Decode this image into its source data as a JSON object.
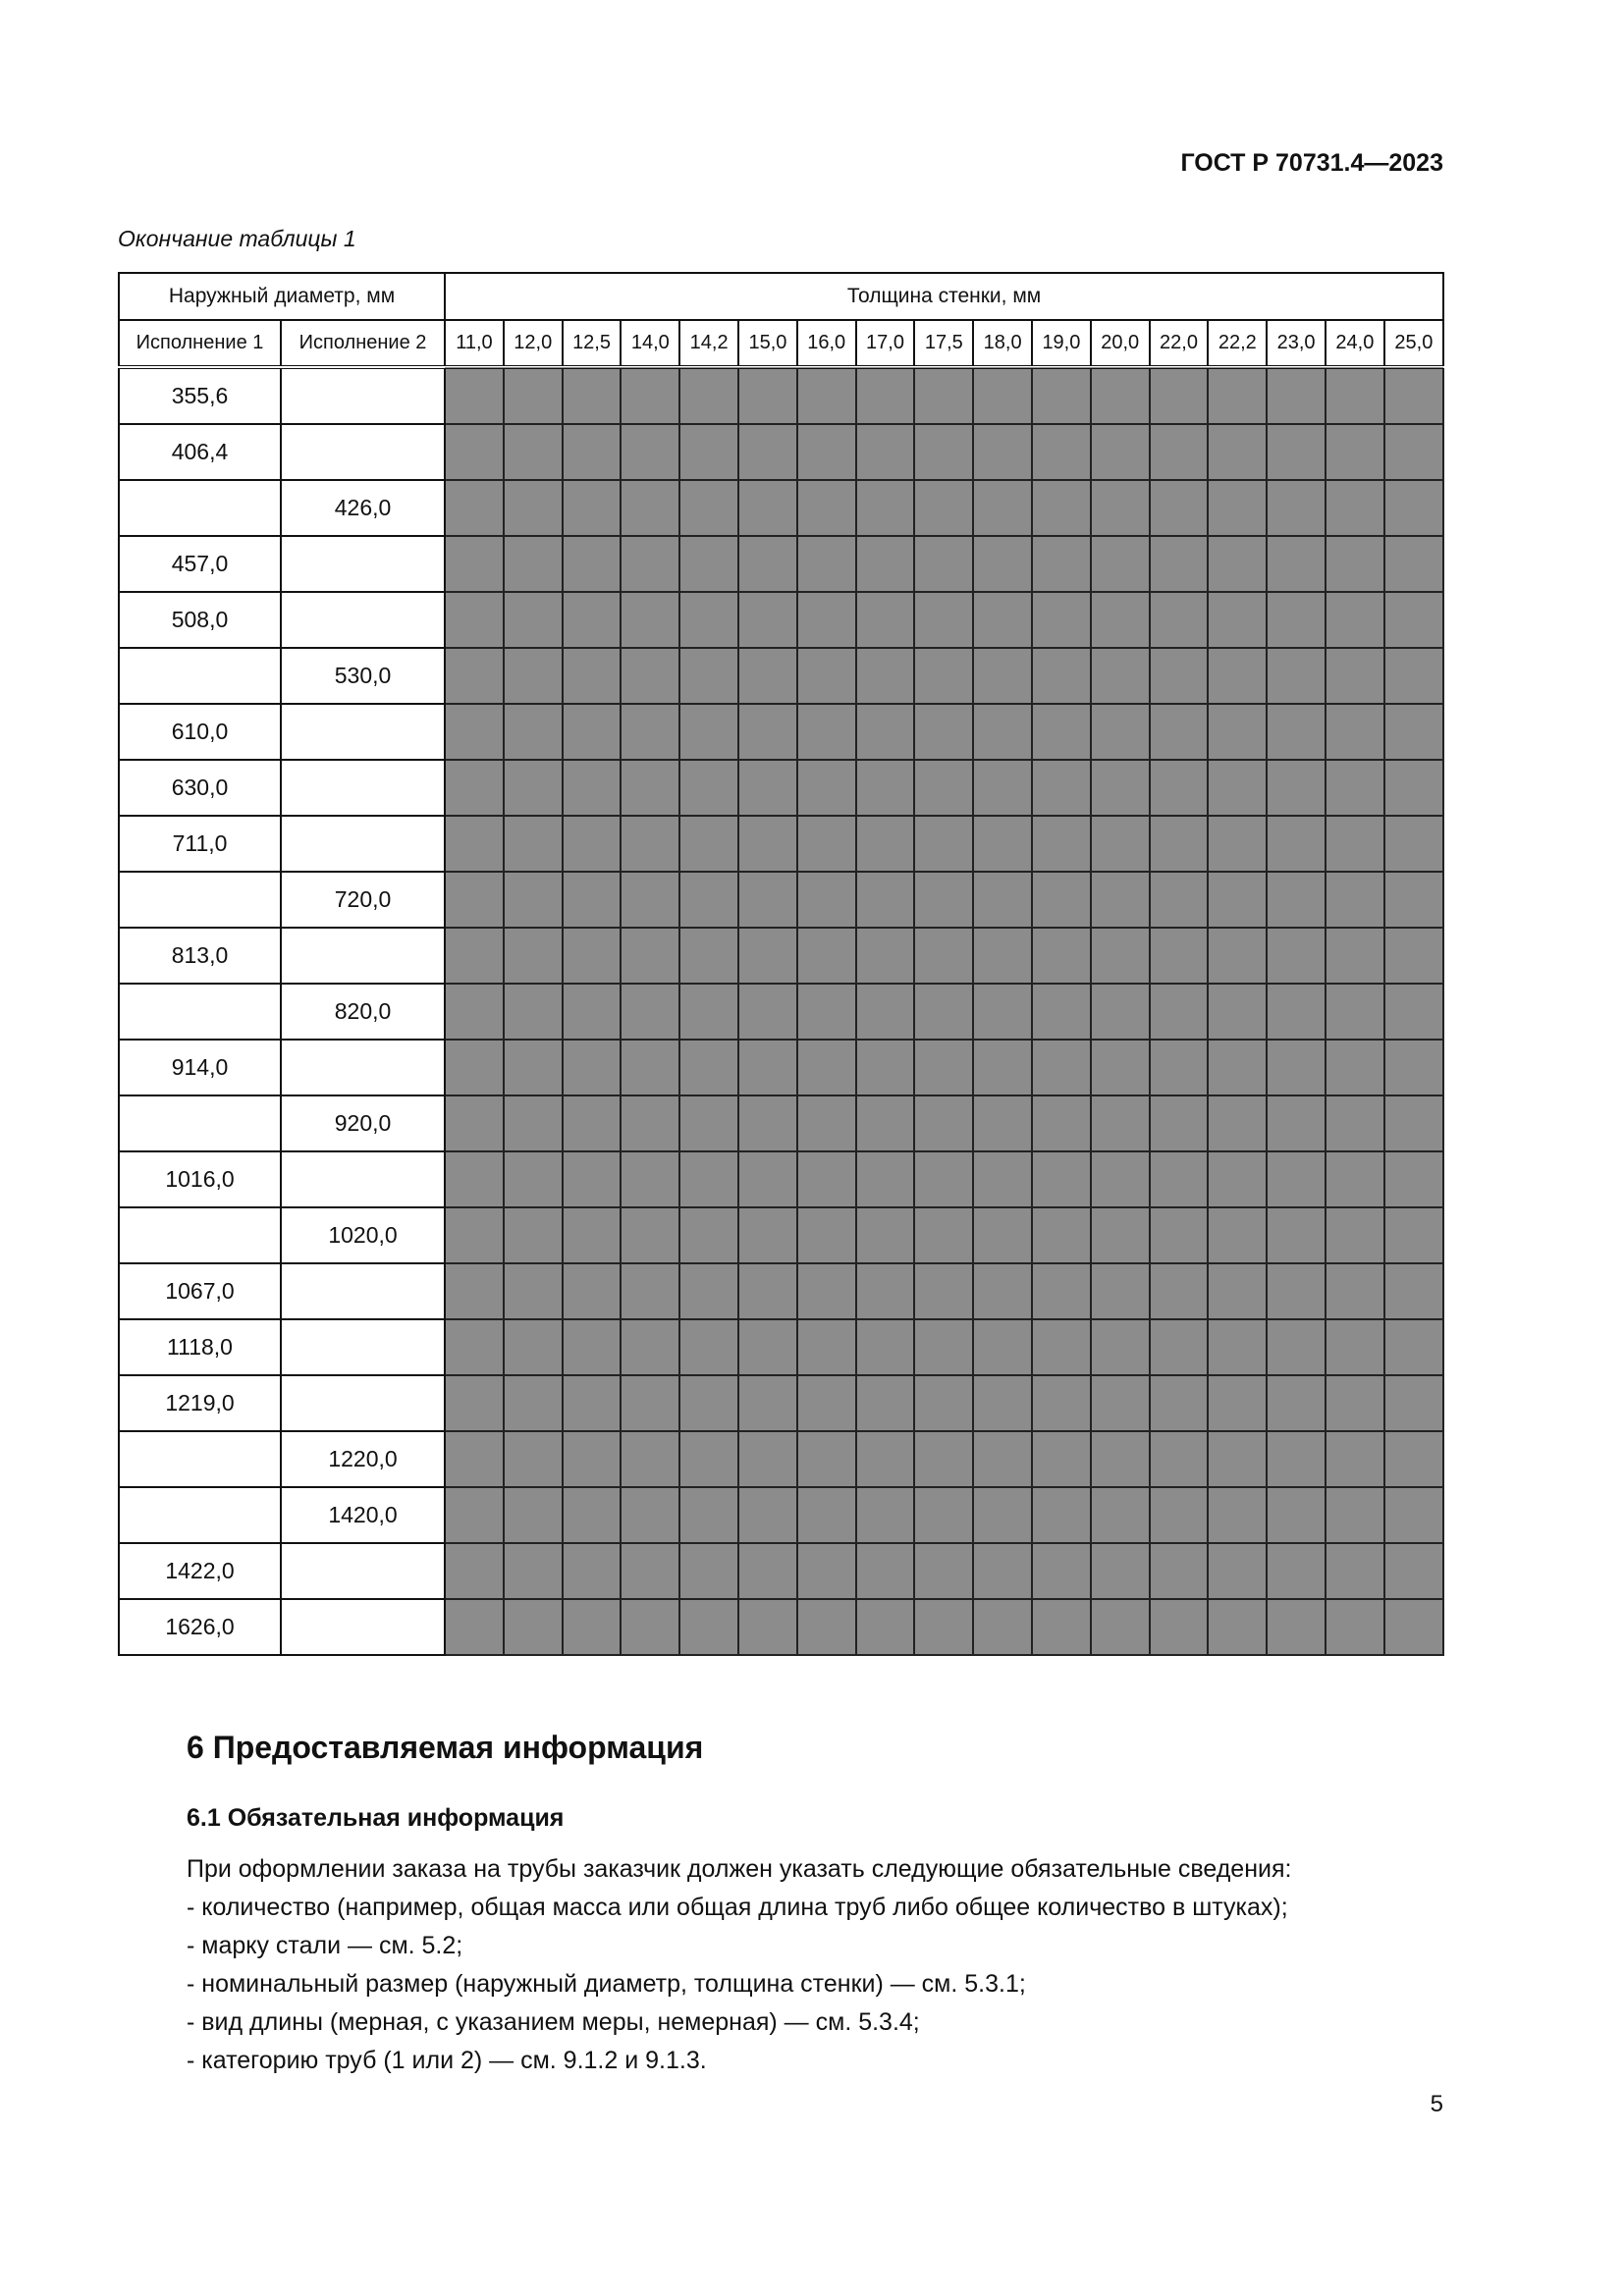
{
  "header": {
    "doc_code": "ГОСТ Р 70731.4—2023"
  },
  "table": {
    "caption": "Окончание таблицы 1",
    "group_header_diameter": "Наружный диаметр, мм",
    "group_header_thickness": "Толщина стенки, мм",
    "col_exec1": "Исполнение 1",
    "col_exec2": "Исполнение 2",
    "thickness_columns": [
      "11,0",
      "12,0",
      "12,5",
      "14,0",
      "14,2",
      "15,0",
      "16,0",
      "17,0",
      "17,5",
      "18,0",
      "19,0",
      "20,0",
      "22,0",
      "22,2",
      "23,0",
      "24,0",
      "25,0"
    ],
    "cell_fill_color": "#8c8c8c",
    "rows": [
      [
        "355,6",
        ""
      ],
      [
        "406,4",
        ""
      ],
      [
        "",
        "426,0"
      ],
      [
        "457,0",
        ""
      ],
      [
        "508,0",
        ""
      ],
      [
        "",
        "530,0"
      ],
      [
        "610,0",
        ""
      ],
      [
        "630,0",
        ""
      ],
      [
        "711,0",
        ""
      ],
      [
        "",
        "720,0"
      ],
      [
        "813,0",
        ""
      ],
      [
        "",
        "820,0"
      ],
      [
        "914,0",
        ""
      ],
      [
        "",
        "920,0"
      ],
      [
        "1016,0",
        ""
      ],
      [
        "",
        "1020,0"
      ],
      [
        "1067,0",
        ""
      ],
      [
        "1118,0",
        ""
      ],
      [
        "1219,0",
        ""
      ],
      [
        "",
        "1220,0"
      ],
      [
        "",
        "1420,0"
      ],
      [
        "1422,0",
        ""
      ],
      [
        "1626,0",
        ""
      ]
    ]
  },
  "section6": {
    "title": "6  Предоставляемая информация",
    "sub_title": "6.1  Обязательная информация",
    "paragraphs": [
      "При оформлении заказа на трубы заказчик должен указать следующие обязательные сведения:",
      "- количество (например, общая масса или общая длина труб либо общее количество в штуках);",
      "- марку стали — см. 5.2;",
      "- номинальный размер (наружный диаметр, толщина стенки) — см. 5.3.1;",
      "- вид длины (мерная, с указанием меры, немерная) — см. 5.3.4;",
      "- категорию труб (1 или 2) — см. 9.1.2 и 9.1.3."
    ]
  },
  "footer": {
    "page_number": "5"
  }
}
